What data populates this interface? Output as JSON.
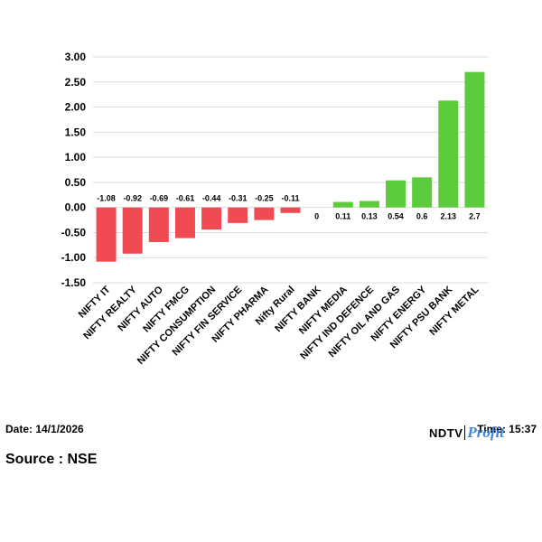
{
  "chart_data": {
    "type": "bar",
    "categories": [
      "NIFTY IT",
      "NIFTY REALTY",
      "NIFTY AUTO",
      "NIFTY FMCG",
      "NIFTY CONSUMPTION",
      "NIFTY FIN SERVICE",
      "NIFTY PHARMA",
      "Nifty Rural",
      "NIFTY BANK",
      "NIFTY MEDIA",
      "NIFTY IND DEFENCE",
      "NIFTY OIL AND GAS",
      "NIFTY ENERGY",
      "NIFTY PSU BANK",
      "NIFTY METAL"
    ],
    "values": [
      -1.08,
      -0.92,
      -0.69,
      -0.61,
      -0.44,
      -0.31,
      -0.25,
      -0.11,
      0,
      0.11,
      0.13,
      0.54,
      0.6,
      2.13,
      2.7
    ],
    "data_labels": [
      "-1.08",
      "-0.92",
      "-0.69",
      "-0.61",
      "-0.44",
      "-0.31",
      "-0.25",
      "-0.11",
      "0",
      "0.11",
      "0.13",
      "0.54",
      "0.6",
      "2.13",
      "2.7"
    ],
    "yticks": [
      "3.00",
      "2.50",
      "2.00",
      "1.50",
      "1.00",
      "0.50",
      "0.00",
      "-0.50",
      "-1.00",
      "-1.50"
    ],
    "ylim": [
      -1.5,
      3.0
    ],
    "grid": true,
    "colors": {
      "negative": "#f04a52",
      "positive": "#5ccb3c",
      "grid": "#dddddd"
    }
  },
  "footer": {
    "date": "Date: 14/1/2026",
    "source": "Source : NSE",
    "time": "Time: 15:37",
    "logo_left": "NDTV",
    "logo_right": "Profit"
  }
}
